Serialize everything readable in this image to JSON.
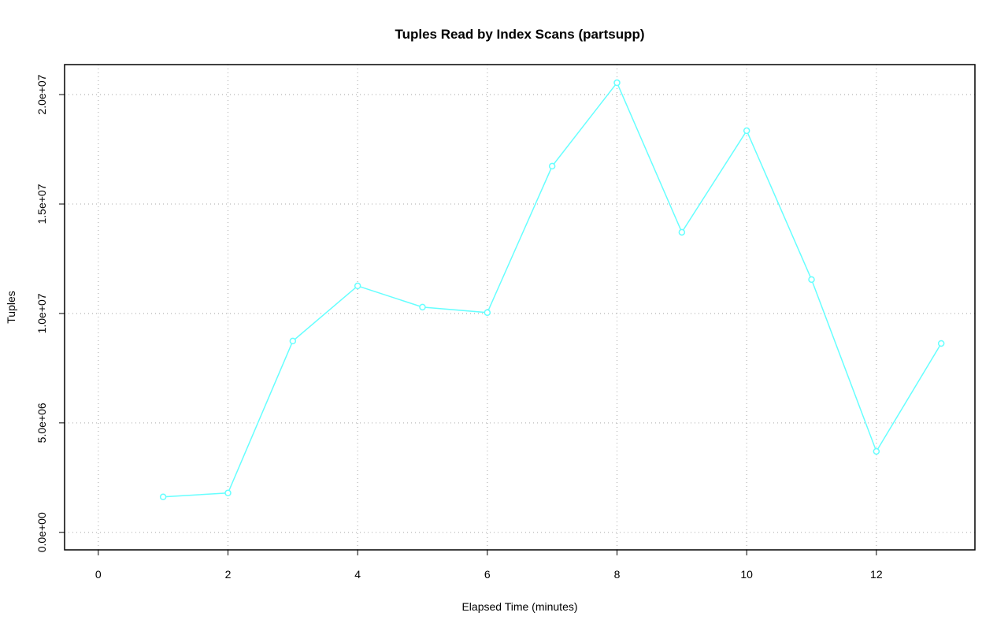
{
  "chart_data": {
    "type": "line",
    "title": "Tuples Read by Index Scans (partsupp)",
    "x_label": "Elapsed Time (minutes)",
    "y_label": "Tuples",
    "x": [
      1,
      2,
      3,
      4,
      5,
      6,
      7,
      8,
      9,
      10,
      11,
      12,
      13
    ],
    "series": [
      {
        "color": "#66ffff",
        "values": [
          1620000,
          1800000,
          8740000,
          11260000,
          10290000,
          10040000,
          16730000,
          20540000,
          13710000,
          18350000,
          11550000,
          3700000,
          8630000
        ]
      }
    ],
    "xlim": [
      -0.52,
      13.52
    ],
    "ylim": [
      -800000,
      21370000
    ],
    "xticks": [
      0,
      2,
      4,
      6,
      8,
      10,
      12
    ],
    "yticks": [
      {
        "value": 0,
        "label": "0.0e+00"
      },
      {
        "value": 5000000,
        "label": "5.0e+06"
      },
      {
        "value": 10000000,
        "label": "1.0e+07"
      },
      {
        "value": 15000000,
        "label": "1.5e+07"
      },
      {
        "value": 20000000,
        "label": "2.0e+07"
      }
    ],
    "grid": true
  }
}
